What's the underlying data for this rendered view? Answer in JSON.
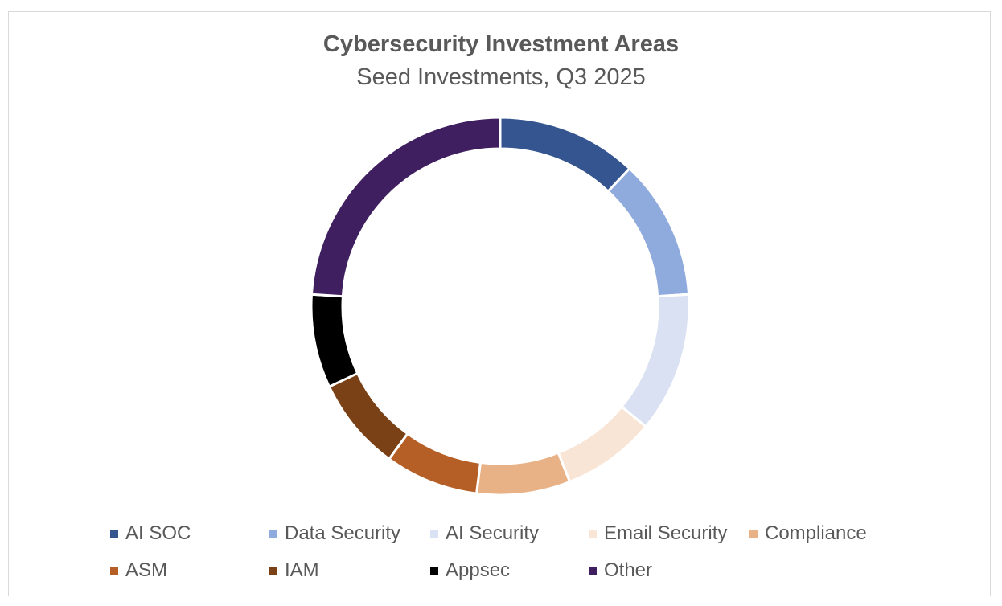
{
  "chart_data": {
    "type": "pie",
    "variant": "donut",
    "title": "Cybersecurity Investment Areas",
    "subtitle": "Seed Investments, Q3 2025",
    "legend_position": "bottom",
    "categories": [
      "AI SOC",
      "Data Security",
      "AI Security",
      "Email Security",
      "Compliance",
      "ASM",
      "IAM",
      "Appsec",
      "Other"
    ],
    "values": [
      12,
      12,
      12,
      8,
      8,
      8,
      8,
      8,
      24
    ],
    "colors": [
      "#355591",
      "#8faadc",
      "#d9e1f2",
      "#f8e5d6",
      "#e8b186",
      "#b55f26",
      "#7a4117",
      "#000000",
      "#3f1f5f"
    ]
  }
}
